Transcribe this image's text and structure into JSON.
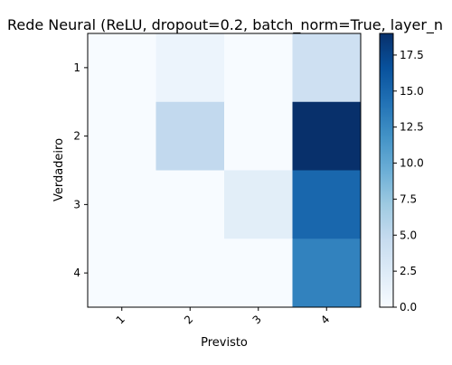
{
  "chart_data": {
    "type": "heatmap",
    "title": "Rede Neural (ReLU, dropout=0.2, batch_norm=True, layer_n",
    "xlabel": "Previsto",
    "ylabel": "Verdadeiro",
    "x_categories": [
      "1",
      "2",
      "3",
      "4"
    ],
    "y_categories": [
      "1",
      "2",
      "3",
      "4"
    ],
    "values": [
      [
        0,
        1,
        0,
        4
      ],
      [
        0,
        5,
        0,
        19
      ],
      [
        0,
        0,
        2,
        15
      ],
      [
        0,
        0,
        0,
        13
      ]
    ],
    "colormap": "Blues",
    "color_range": [
      0,
      19
    ],
    "colorbar_ticks": [
      "0.0",
      "2.5",
      "5.0",
      "7.5",
      "10.0",
      "12.5",
      "15.0",
      "17.5"
    ],
    "colorbar_tick_values": [
      0,
      2.5,
      5,
      7.5,
      10,
      12.5,
      15,
      17.5
    ],
    "x_tick_rotation": "45",
    "grid": false,
    "colors": {
      "low": "#f7fbff",
      "high": "#08306b"
    }
  }
}
